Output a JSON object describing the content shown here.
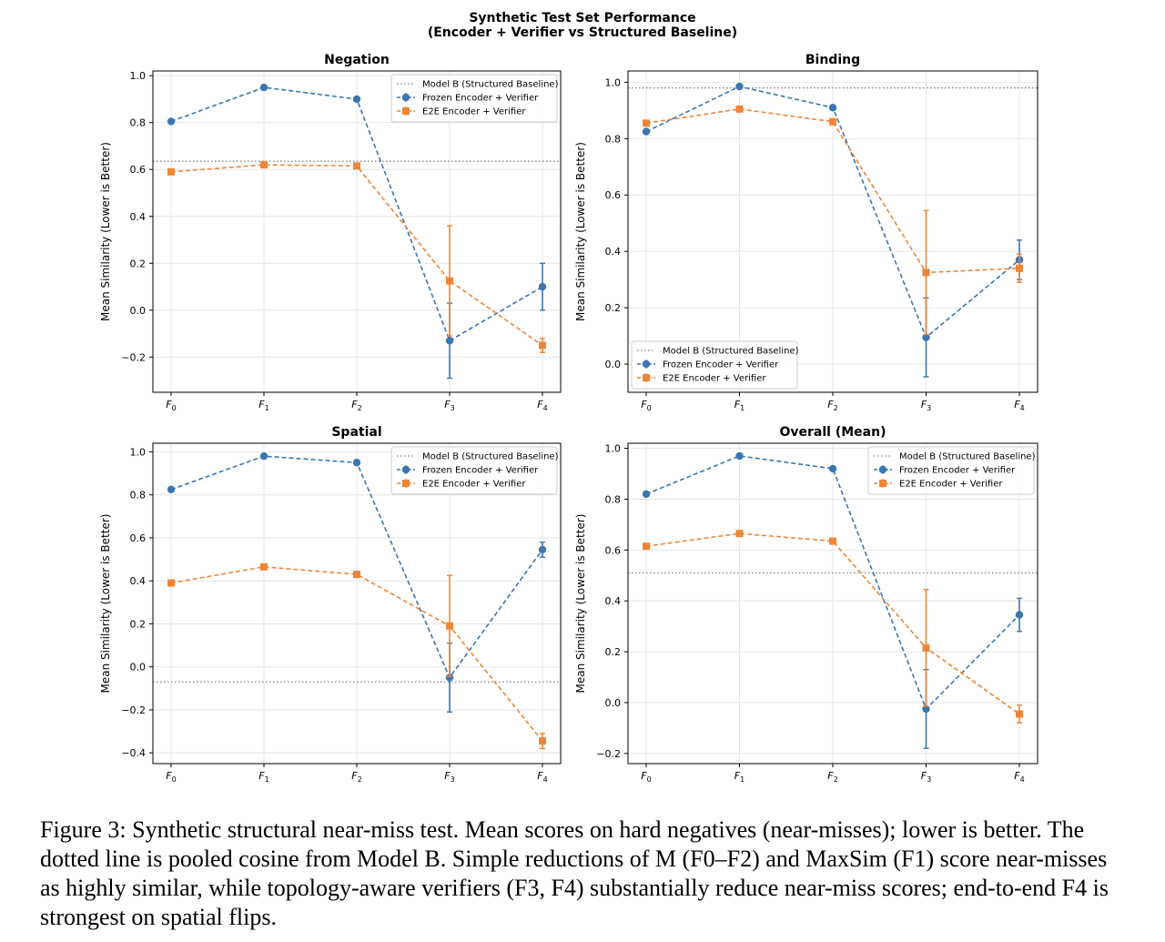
{
  "figure": {
    "title_line1": "Synthetic Test Set Performance",
    "title_line2": "(Encoder + Verifier vs Structured Baseline)"
  },
  "caption": "Figure 3: Synthetic structural near-miss test. Mean scores on hard negatives (near-misses); lower is better. The dotted line is pooled cosine from Model B. Simple reductions of M (F0–F2) and MaxSim (F1) score near-misses as highly similar, while topology-aware verifiers (F3, F4) substantially reduce near-miss scores; end-to-end F4 is strongest on spatial flips.",
  "colors": {
    "frozen": "#3a76af",
    "e2e": "#ef8636",
    "baseline": "#808080",
    "grid": "#e6e6e6"
  },
  "chart_data": [
    {
      "type": "line",
      "title": "Negation",
      "ylabel": "Mean Similarity (Lower is Better)",
      "categories": [
        "F0",
        "F1",
        "F2",
        "F3",
        "F4"
      ],
      "ylim": [
        -0.35,
        1.02
      ],
      "yticks": [
        -0.2,
        0.0,
        0.2,
        0.4,
        0.6,
        0.8,
        1.0
      ],
      "legend_position": "upper-right",
      "baseline": {
        "name": "Model B (Structured Baseline)",
        "value": 0.635
      },
      "series": [
        {
          "name": "Frozen Encoder + Verifier",
          "marker": "circle",
          "values": [
            0.805,
            0.95,
            0.9,
            -0.13,
            0.1
          ],
          "err": [
            0,
            0,
            0,
            0.16,
            0.1
          ]
        },
        {
          "name": "E2E Encoder + Verifier",
          "marker": "square",
          "values": [
            0.59,
            0.62,
            0.615,
            0.125,
            -0.15
          ],
          "err": [
            0,
            0,
            0,
            0.235,
            0.03
          ]
        }
      ]
    },
    {
      "type": "line",
      "title": "Binding",
      "ylabel": "Mean Similarity (Lower is Better)",
      "categories": [
        "F0",
        "F1",
        "F2",
        "F3",
        "F4"
      ],
      "ylim": [
        -0.1,
        1.04
      ],
      "yticks": [
        0.0,
        0.2,
        0.4,
        0.6,
        0.8,
        1.0
      ],
      "legend_position": "lower-left",
      "baseline": {
        "name": "Model B (Structured Baseline)",
        "value": 0.98
      },
      "series": [
        {
          "name": "Frozen Encoder + Verifier",
          "marker": "circle",
          "values": [
            0.825,
            0.985,
            0.91,
            0.095,
            0.37
          ],
          "err": [
            0,
            0,
            0,
            0.14,
            0.07
          ]
        },
        {
          "name": "E2E Encoder + Verifier",
          "marker": "square",
          "values": [
            0.855,
            0.905,
            0.86,
            0.325,
            0.34
          ],
          "err": [
            0,
            0,
            0,
            0.22,
            0.05
          ]
        }
      ]
    },
    {
      "type": "line",
      "title": "Spatial",
      "ylabel": "Mean Similarity (Lower is Better)",
      "categories": [
        "F0",
        "F1",
        "F2",
        "F3",
        "F4"
      ],
      "ylim": [
        -0.45,
        1.04
      ],
      "yticks": [
        -0.4,
        -0.2,
        0.0,
        0.2,
        0.4,
        0.6,
        0.8,
        1.0
      ],
      "legend_position": "upper-right",
      "baseline": {
        "name": "Model B (Structured Baseline)",
        "value": -0.07
      },
      "series": [
        {
          "name": "Frozen Encoder + Verifier",
          "marker": "circle",
          "values": [
            0.825,
            0.98,
            0.95,
            -0.05,
            0.545
          ],
          "err": [
            0,
            0,
            0,
            0.16,
            0.035
          ]
        },
        {
          "name": "E2E Encoder + Verifier",
          "marker": "square",
          "values": [
            0.39,
            0.465,
            0.43,
            0.19,
            -0.345
          ],
          "err": [
            0,
            0,
            0,
            0.235,
            0.035
          ]
        }
      ]
    },
    {
      "type": "line",
      "title": "Overall (Mean)",
      "ylabel": "Mean Similarity (Lower is Better)",
      "categories": [
        "F0",
        "F1",
        "F2",
        "F3",
        "F4"
      ],
      "ylim": [
        -0.24,
        1.02
      ],
      "yticks": [
        -0.2,
        0.0,
        0.2,
        0.4,
        0.6,
        0.8,
        1.0
      ],
      "legend_position": "upper-right",
      "baseline": {
        "name": "Model B (Structured Baseline)",
        "value": 0.51
      },
      "series": [
        {
          "name": "Frozen Encoder + Verifier",
          "marker": "circle",
          "values": [
            0.82,
            0.97,
            0.92,
            -0.025,
            0.345
          ],
          "err": [
            0,
            0,
            0,
            0.155,
            0.065
          ]
        },
        {
          "name": "E2E Encoder + Verifier",
          "marker": "square",
          "values": [
            0.615,
            0.665,
            0.635,
            0.215,
            -0.045
          ],
          "err": [
            0,
            0,
            0,
            0.23,
            0.035
          ]
        }
      ]
    }
  ]
}
